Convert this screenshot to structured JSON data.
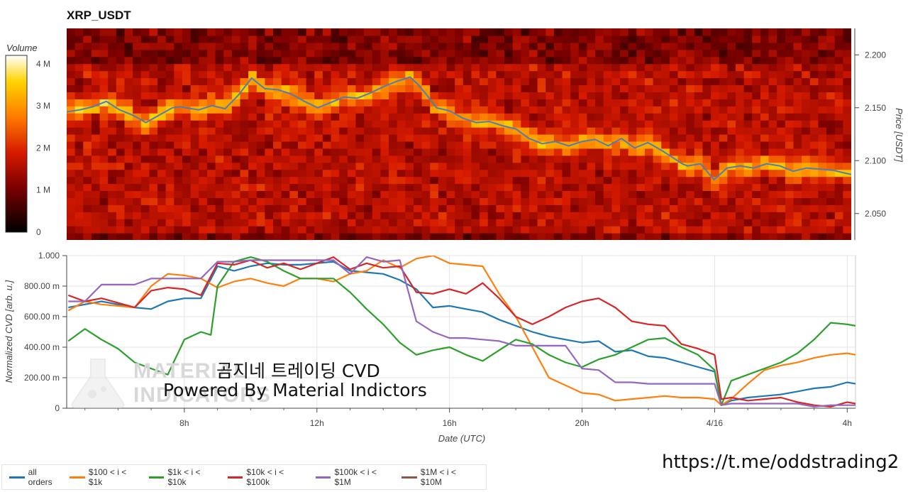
{
  "title": "XRP_USDT",
  "colorbar": {
    "title": "Volume",
    "ticks": [
      "0",
      "1 M",
      "2 M",
      "3 M",
      "4 M"
    ],
    "tick_values": [
      0,
      1,
      2,
      3,
      4
    ]
  },
  "watermark": {
    "line1": "곰지네 트레이딩 CVD",
    "line2": "Powered By Material Indictors",
    "logo_text_1": "MATERIAL",
    "logo_text_2": "INDICATORS"
  },
  "channel_link": "https://t.me/oddstrading2",
  "colors": {
    "all_orders": "#1f77b4",
    "100_1k": "#ff7f0e",
    "1k_10k": "#2ca02c",
    "10k_100k": "#d62728",
    "100k_1m": "#9467bd",
    "1m_10m": "#8c564b",
    "price_line": "#4a7fb5"
  },
  "chart_data": [
    {
      "type": "heatmap",
      "title": "XRP_USDT",
      "ylabel": "Price [USDT]",
      "y_ticks": [
        "2.050",
        "2.100",
        "2.150",
        "2.200"
      ],
      "y_tick_values": [
        2.05,
        2.1,
        2.15,
        2.2
      ],
      "ylim": [
        2.025,
        2.225
      ],
      "x_time_range": [
        "04:30",
        "04:10 next day"
      ],
      "colorbar_label": "Volume",
      "colorbar_range": [
        0,
        4.2
      ],
      "overlay_price_series": {
        "name": "price",
        "t": [
          0,
          0.5,
          1,
          1.5,
          2,
          2.5,
          3,
          3.5,
          4,
          4.3,
          4.5,
          5,
          5.5,
          6,
          6.5,
          7,
          7.5,
          8,
          8.5,
          9,
          9.5,
          10,
          10.5,
          11,
          11.5,
          12,
          12.5,
          13,
          13.3,
          13.6,
          14,
          14.5,
          15,
          15.5,
          16,
          16.5,
          17,
          17.5,
          18,
          18.5,
          19,
          19.5,
          20,
          20.5,
          21,
          21.5,
          22,
          22.5,
          23,
          23.3,
          23.5,
          24,
          24.5,
          25,
          25.5,
          26,
          26.5,
          27,
          27.5,
          28,
          28.5,
          29,
          29.5,
          29.7
        ],
        "price": [
          2.146,
          2.148,
          2.151,
          2.156,
          2.148,
          2.143,
          2.136,
          2.143,
          2.15,
          2.151,
          2.15,
          2.148,
          2.152,
          2.149,
          2.162,
          2.178,
          2.168,
          2.167,
          2.163,
          2.156,
          2.15,
          2.155,
          2.16,
          2.159,
          2.164,
          2.17,
          2.175,
          2.179,
          2.172,
          2.163,
          2.15,
          2.147,
          2.14,
          2.136,
          2.137,
          2.133,
          2.13,
          2.121,
          2.116,
          2.118,
          2.114,
          2.118,
          2.12,
          2.114,
          2.121,
          2.112,
          2.117,
          2.11,
          2.102,
          2.097,
          2.095,
          2.097,
          2.082,
          2.093,
          2.095,
          2.093,
          2.097,
          2.095,
          2.09,
          2.093,
          2.092,
          2.091,
          2.088,
          2.087
        ]
      }
    },
    {
      "type": "line",
      "xlabel": "Date (UTC)",
      "ylabel": "Normalized CVD [arb. u.]",
      "x_ticks": [
        "8h",
        "12h",
        "16h",
        "20h",
        "4/16",
        "4h"
      ],
      "x_tick_hours": [
        8,
        12,
        16,
        20,
        24,
        28
      ],
      "xlim": [
        4.45,
        28.25
      ],
      "y_ticks": [
        "0",
        "200.00 m",
        "400.00 m",
        "600.00 m",
        "800.00 m",
        "1.000"
      ],
      "y_tick_values": [
        0,
        0.2,
        0.4,
        0.6,
        0.8,
        1.0
      ],
      "ylim": [
        0,
        1
      ],
      "grid": true,
      "legend_position": "bottom",
      "series": [
        {
          "name": "all orders",
          "color": "#1f77b4",
          "x": [
            4.5,
            5,
            5.5,
            6,
            6.5,
            7,
            7.5,
            8,
            8.5,
            9,
            9.5,
            10,
            10.5,
            11,
            11.5,
            12,
            12.5,
            13,
            13.5,
            14,
            14.5,
            15,
            15.5,
            16,
            16.5,
            17,
            17.5,
            18,
            18.5,
            19,
            19.5,
            20,
            20.5,
            21,
            21.5,
            22,
            22.5,
            23,
            23.5,
            24,
            24.2,
            24.5,
            25,
            25.5,
            26,
            26.5,
            27,
            27.5,
            28,
            28.25
          ],
          "y": [
            0.66,
            0.68,
            0.7,
            0.68,
            0.66,
            0.65,
            0.7,
            0.72,
            0.72,
            0.93,
            0.9,
            0.93,
            0.95,
            0.94,
            0.94,
            0.95,
            0.96,
            0.9,
            0.89,
            0.88,
            0.84,
            0.78,
            0.66,
            0.67,
            0.65,
            0.63,
            0.58,
            0.54,
            0.5,
            0.47,
            0.45,
            0.43,
            0.44,
            0.37,
            0.38,
            0.34,
            0.33,
            0.3,
            0.27,
            0.24,
            0.02,
            0.05,
            0.07,
            0.08,
            0.09,
            0.11,
            0.13,
            0.14,
            0.17,
            0.16
          ]
        },
        {
          "name": "$100 < i < $1k",
          "color": "#ff7f0e",
          "x": [
            4.5,
            5,
            5.5,
            6,
            6.5,
            7,
            7.5,
            8,
            8.5,
            9,
            9.5,
            10,
            10.5,
            11,
            11.5,
            12,
            12.5,
            13,
            13.5,
            14,
            14.5,
            15,
            15.5,
            16,
            16.5,
            17,
            17.5,
            18,
            18.5,
            19,
            19.5,
            20,
            20.5,
            21,
            21.5,
            22,
            22.5,
            23,
            23.5,
            24,
            24.2,
            24.5,
            25,
            25.5,
            26,
            26.5,
            27,
            27.5,
            28,
            28.25
          ],
          "y": [
            0.64,
            0.7,
            0.68,
            0.67,
            0.66,
            0.8,
            0.88,
            0.87,
            0.85,
            0.79,
            0.83,
            0.85,
            0.82,
            0.8,
            0.85,
            0.85,
            0.83,
            0.88,
            0.9,
            0.97,
            0.92,
            0.98,
            1.0,
            0.95,
            0.94,
            0.93,
            0.75,
            0.6,
            0.4,
            0.2,
            0.15,
            0.1,
            0.09,
            0.05,
            0.06,
            0.07,
            0.08,
            0.07,
            0.07,
            0.06,
            0.02,
            0.06,
            0.16,
            0.25,
            0.28,
            0.3,
            0.33,
            0.35,
            0.36,
            0.35
          ]
        },
        {
          "name": "$1k < i < $10k",
          "color": "#2ca02c",
          "x": [
            4.5,
            5,
            5.5,
            6,
            6.5,
            7,
            7.5,
            8,
            8.5,
            8.8,
            9,
            9.5,
            10,
            10.5,
            11,
            11.5,
            12,
            12.5,
            13,
            13.5,
            14,
            14.5,
            15,
            15.5,
            16,
            16.5,
            17,
            17.5,
            18,
            18.5,
            19,
            19.5,
            20,
            20.5,
            21,
            21.5,
            22,
            22.5,
            23,
            23.5,
            24,
            24.2,
            24.5,
            25,
            25.5,
            26,
            26.5,
            27,
            27.5,
            28,
            28.25
          ],
          "y": [
            0.44,
            0.52,
            0.45,
            0.39,
            0.3,
            0.26,
            0.22,
            0.45,
            0.5,
            0.48,
            0.8,
            0.96,
            0.99,
            0.96,
            0.9,
            0.85,
            0.85,
            0.85,
            0.76,
            0.65,
            0.55,
            0.43,
            0.35,
            0.38,
            0.4,
            0.35,
            0.31,
            0.38,
            0.45,
            0.42,
            0.35,
            0.3,
            0.27,
            0.32,
            0.35,
            0.4,
            0.45,
            0.46,
            0.4,
            0.35,
            0.25,
            0.02,
            0.18,
            0.22,
            0.26,
            0.3,
            0.36,
            0.45,
            0.56,
            0.55,
            0.54
          ]
        },
        {
          "name": "$10k < i < $100k",
          "color": "#d62728",
          "x": [
            4.5,
            5,
            5.5,
            6,
            6.5,
            7,
            7.5,
            8,
            8.5,
            9,
            9.5,
            10,
            10.5,
            11,
            11.5,
            12,
            12.5,
            13,
            13.5,
            14,
            14.5,
            15,
            15.5,
            16,
            16.5,
            17,
            17.5,
            18,
            18.5,
            19,
            19.5,
            20,
            20.5,
            21,
            21.5,
            22,
            22.5,
            23,
            23.5,
            24,
            24.2,
            24.5,
            25,
            25.5,
            26,
            26.5,
            27,
            27.5,
            28,
            28.25
          ],
          "y": [
            0.74,
            0.7,
            0.72,
            0.69,
            0.66,
            0.77,
            0.79,
            0.78,
            0.74,
            0.95,
            0.94,
            0.97,
            0.92,
            0.95,
            0.91,
            0.95,
            0.99,
            0.91,
            0.95,
            0.92,
            0.93,
            0.76,
            0.75,
            0.78,
            0.75,
            0.82,
            0.72,
            0.6,
            0.55,
            0.6,
            0.66,
            0.7,
            0.72,
            0.66,
            0.57,
            0.55,
            0.54,
            0.42,
            0.39,
            0.35,
            0.06,
            0.07,
            0.05,
            0.06,
            0.07,
            0.04,
            0.02,
            0.01,
            0.04,
            0.03
          ]
        },
        {
          "name": "$100k < i < $1M",
          "color": "#9467bd",
          "x": [
            4.5,
            5,
            5.5,
            6,
            6.5,
            7,
            7.5,
            8,
            8.5,
            9,
            9.5,
            10,
            10.5,
            11,
            11.5,
            12,
            12.5,
            13,
            13.5,
            14,
            14.5,
            15,
            15.5,
            16,
            16.5,
            17,
            17.5,
            18,
            18.5,
            19,
            19.5,
            20,
            20.5,
            21,
            21.5,
            22,
            22.5,
            23,
            23.5,
            24,
            24.2,
            24.5,
            25,
            25.5,
            26,
            26.5,
            27,
            27.5,
            28,
            28.25
          ],
          "y": [
            0.7,
            0.7,
            0.81,
            0.81,
            0.81,
            0.85,
            0.85,
            0.85,
            0.85,
            0.96,
            0.96,
            0.97,
            0.97,
            0.97,
            0.97,
            0.97,
            0.97,
            0.88,
            0.99,
            0.96,
            0.97,
            0.57,
            0.5,
            0.46,
            0.46,
            0.45,
            0.44,
            0.41,
            0.41,
            0.41,
            0.41,
            0.26,
            0.25,
            0.17,
            0.17,
            0.16,
            0.16,
            0.16,
            0.16,
            0.16,
            0.02,
            0.03,
            0.03,
            0.03,
            0.03,
            0.03,
            0.01,
            0.02,
            0.02,
            0.02
          ]
        },
        {
          "name": "$1M < i < $10M",
          "color": "#8c564b",
          "x": [],
          "y": []
        }
      ]
    }
  ]
}
